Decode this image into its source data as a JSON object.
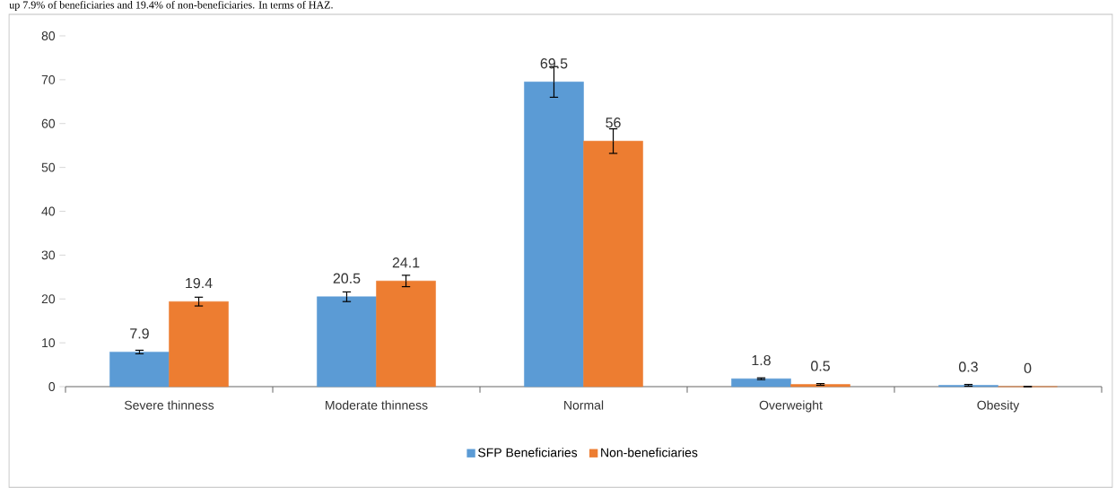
{
  "chart_data": {
    "type": "bar",
    "categories": [
      "Severe thinness",
      "Moderate thinness",
      "Normal",
      "Overweight",
      "Obesity"
    ],
    "series": [
      {
        "name": "SFP Beneficiaries",
        "color": "#5b9bd5",
        "values": [
          7.9,
          20.5,
          69.5,
          1.8,
          0.3
        ],
        "errors": [
          0.4,
          1.1,
          3.5,
          0.2,
          0.2
        ]
      },
      {
        "name": "Non-beneficiaries",
        "color": "#ed7d31",
        "values": [
          19.4,
          24.1,
          56,
          0.5,
          0
        ],
        "errors": [
          1.0,
          1.3,
          2.8,
          0.2,
          0
        ]
      }
    ],
    "ylim": [
      0,
      80
    ],
    "yticks": [
      0,
      10,
      20,
      30,
      40,
      50,
      60,
      70,
      80
    ],
    "data_labels": true,
    "grid": false,
    "legend": "bottom",
    "annotations": [
      "up 7.9% of beneficiaries and 19.4% of non-beneficiaries. In terms of HAZ."
    ]
  }
}
